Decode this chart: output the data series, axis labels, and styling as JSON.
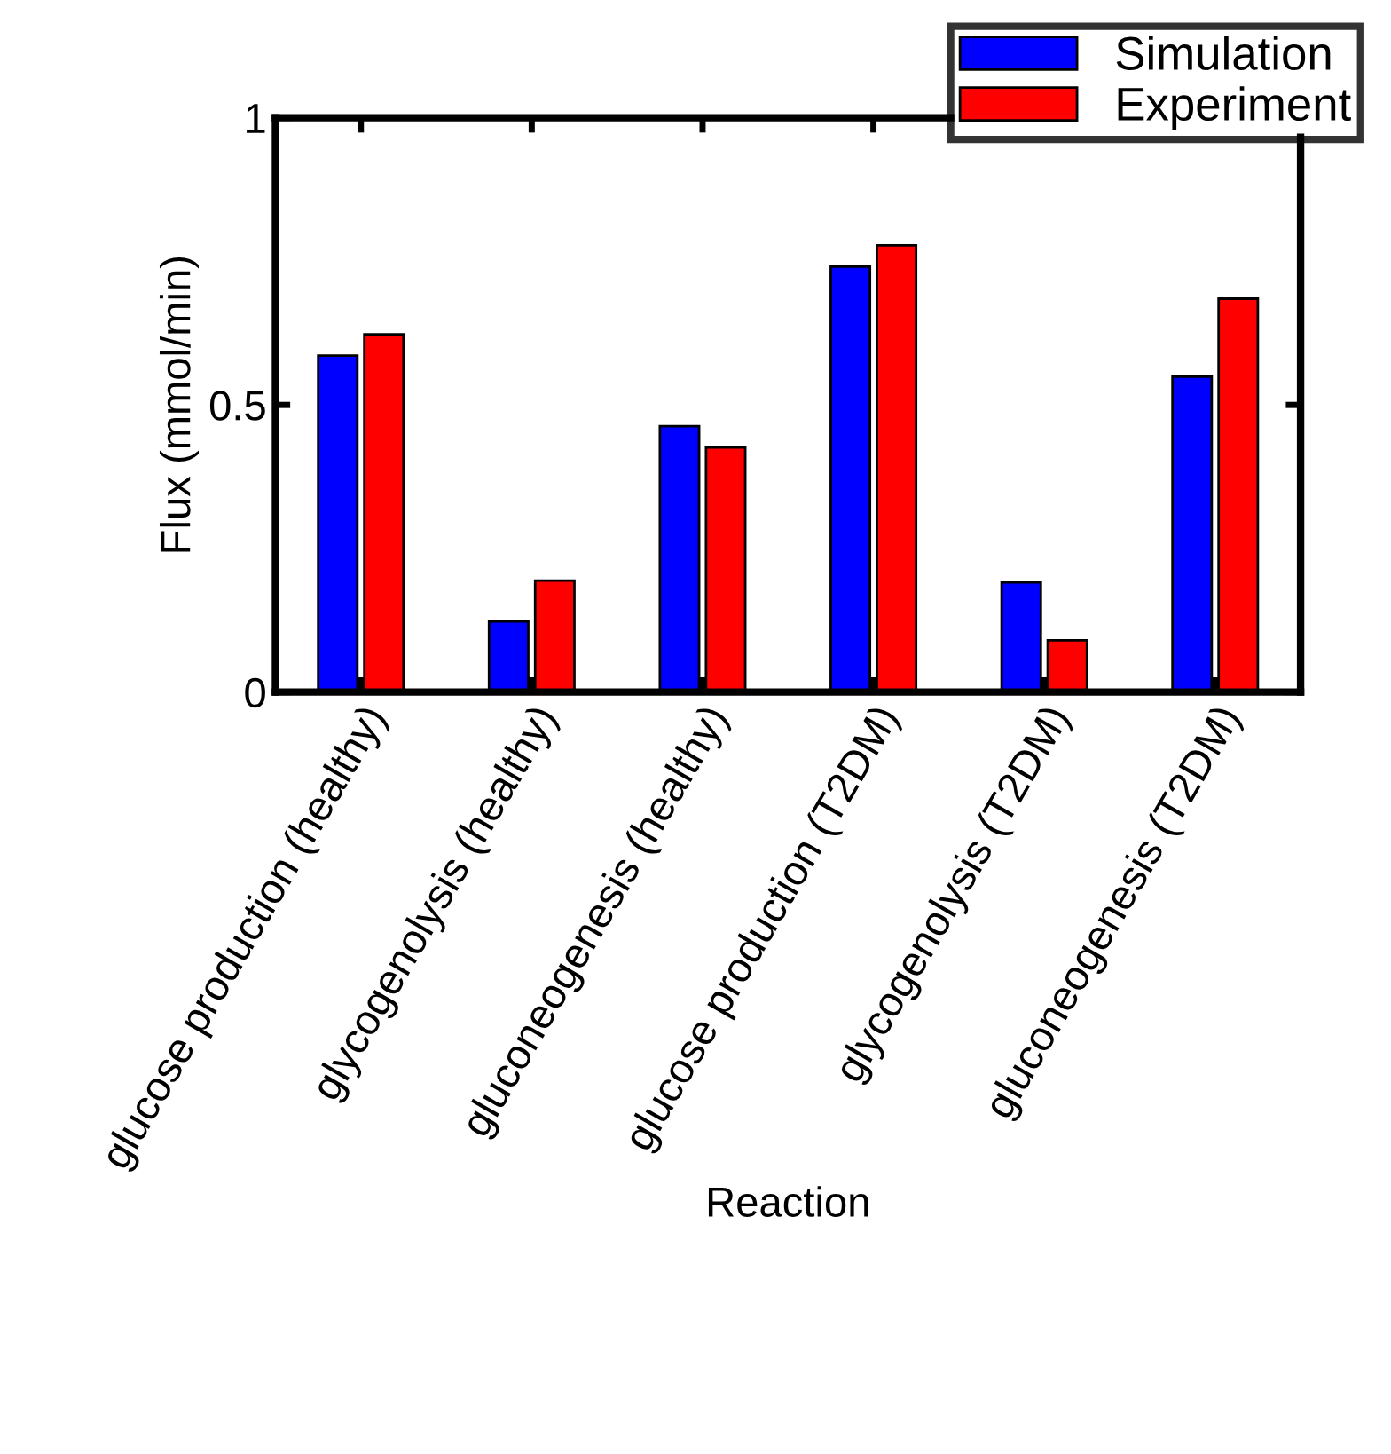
{
  "chart_data": {
    "type": "bar",
    "xlabel": "Reaction",
    "ylabel": "Flux (mmol/min)",
    "categories": [
      "glucose production (healthy)",
      "glycogenolysis (healthy)",
      "gluconeogenesis (healthy)",
      "glucose production (T2DM)",
      "glycogenolysis (T2DM)",
      "gluconeogenesis (T2DM)"
    ],
    "series": [
      {
        "name": "Simulation",
        "color": "#0000ff",
        "values": [
          0.586,
          0.123,
          0.463,
          0.741,
          0.191,
          0.549
        ]
      },
      {
        "name": "Experiment",
        "color": "#ff0000",
        "values": [
          0.623,
          0.194,
          0.426,
          0.778,
          0.09,
          0.685
        ]
      }
    ],
    "ylim": [
      0,
      1
    ],
    "yticks": [
      0,
      0.5,
      1
    ],
    "legend": "top right"
  }
}
